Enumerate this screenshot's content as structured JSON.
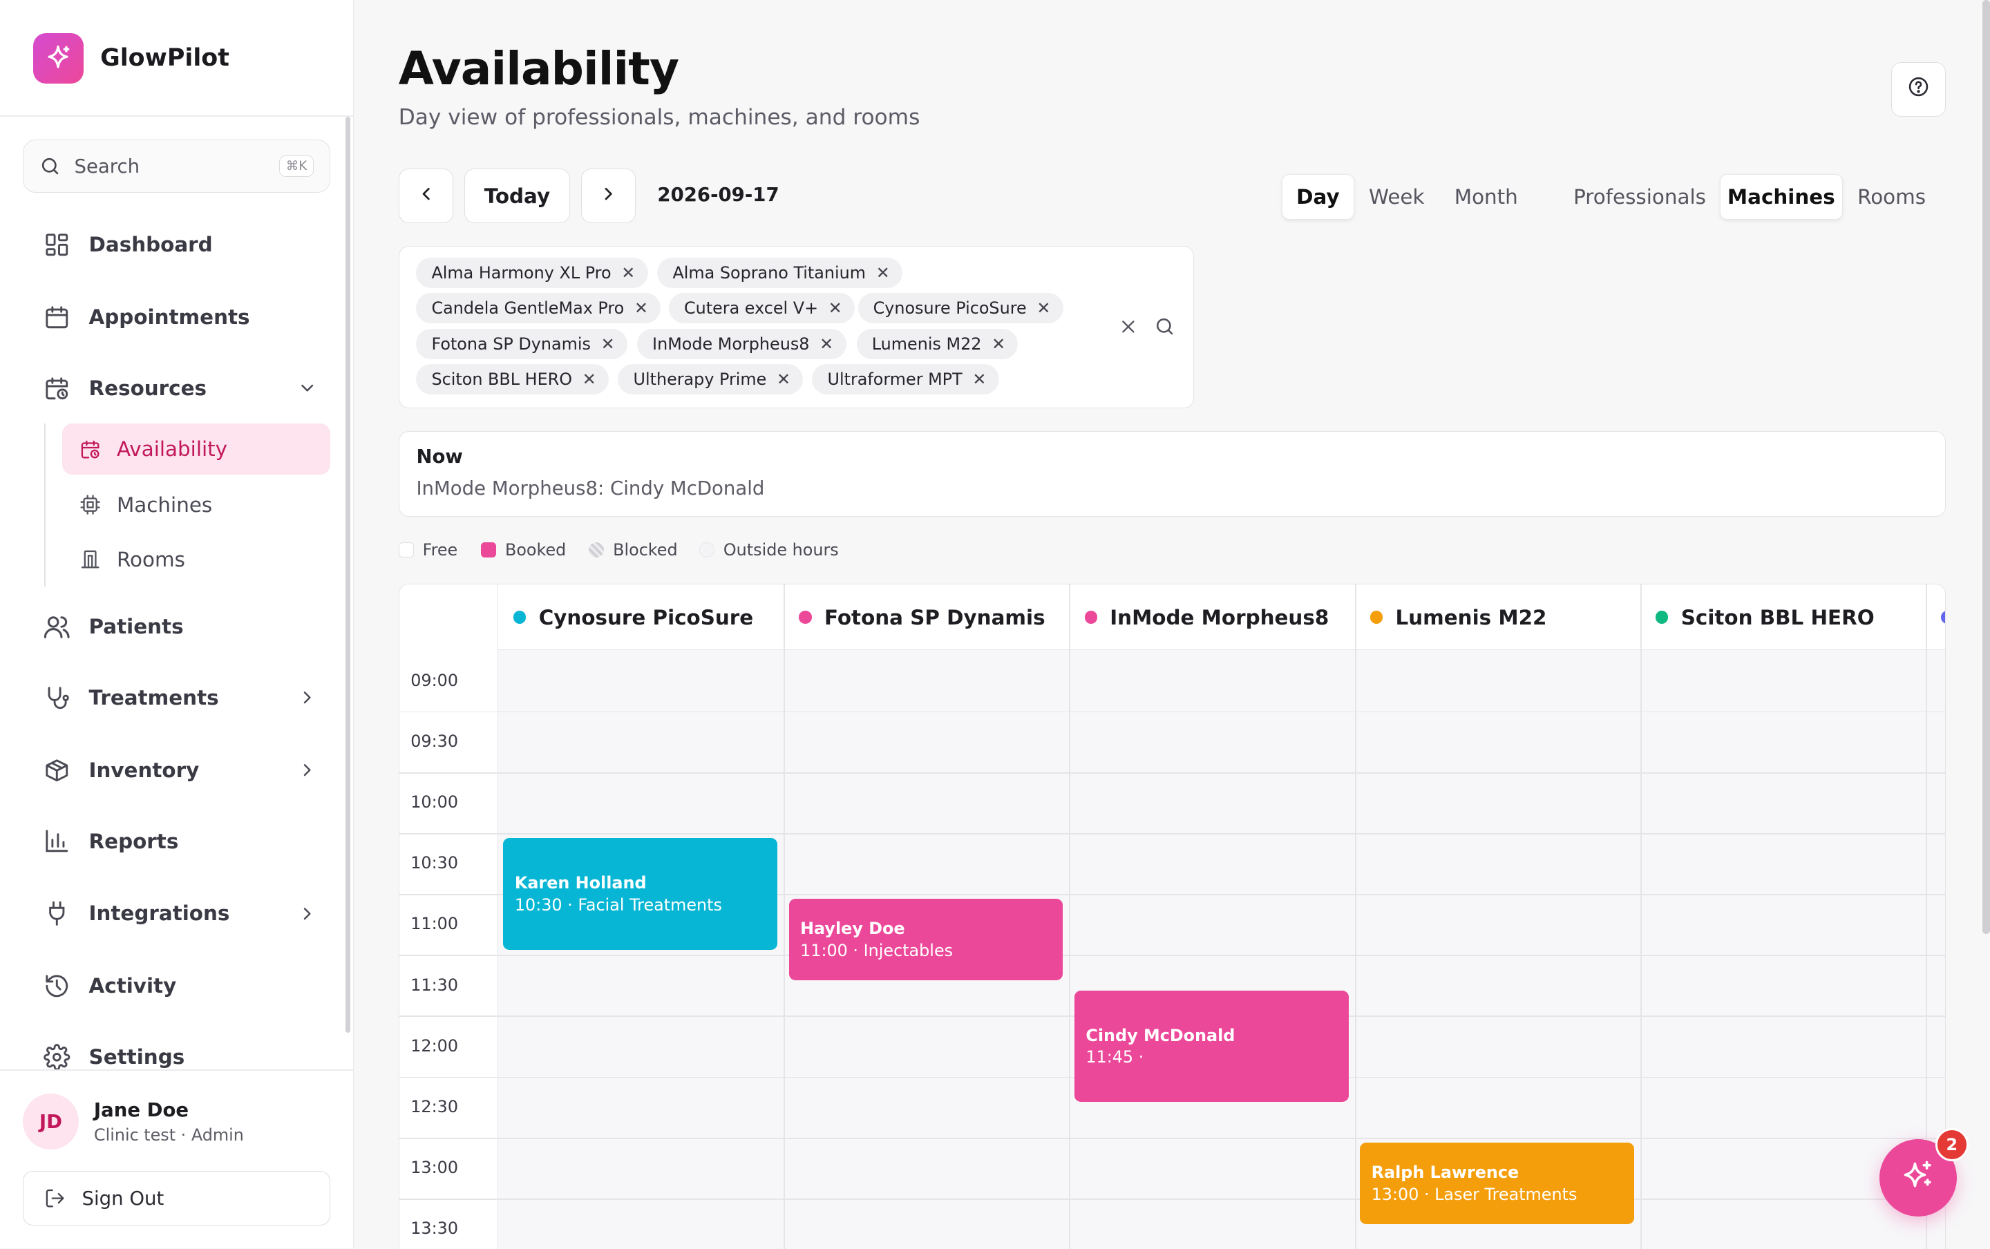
{
  "app": {
    "name": "GlowPilot"
  },
  "search": {
    "label": "Search",
    "shortcut": "⌘K"
  },
  "nav": {
    "dashboard": "Dashboard",
    "appointments": "Appointments",
    "resources": "Resources",
    "availability": "Availability",
    "machines": "Machines",
    "rooms": "Rooms",
    "patients": "Patients",
    "treatments": "Treatments",
    "inventory": "Inventory",
    "reports": "Reports",
    "integrations": "Integrations",
    "activity": "Activity",
    "settings": "Settings"
  },
  "user": {
    "initials": "JD",
    "name": "Jane Doe",
    "role": "Clinic test · Admin",
    "signout": "Sign Out"
  },
  "page": {
    "title": "Availability",
    "subtitle": "Day view of professionals, machines, and rooms"
  },
  "toolbar": {
    "today": "Today",
    "date": "2026-09-17",
    "view_day": "Day",
    "view_week": "Week",
    "view_month": "Month",
    "res_professionals": "Professionals",
    "res_machines": "Machines",
    "res_rooms": "Rooms",
    "active_view": "Day",
    "active_resource": "Machines"
  },
  "filters": {
    "chips": [
      "Alma Harmony XL Pro",
      "Alma Soprano Titanium",
      "Candela GentleMax Pro",
      "Cutera excel V+",
      "Cynosure PicoSure",
      "Fotona SP Dynamis",
      "InMode Morpheus8",
      "Lumenis M22",
      "Sciton BBL HERO",
      "Ultherapy Prime",
      "Ultraformer MPT"
    ],
    "remove_glyph": "✕"
  },
  "now": {
    "label": "Now",
    "value": "InMode Morpheus8: Cindy McDonald"
  },
  "legend": {
    "free": "Free",
    "booked": "Booked",
    "blocked": "Blocked",
    "outside": "Outside hours"
  },
  "calendar": {
    "columns": [
      {
        "name": "Cynosure PicoSure",
        "color": "#06b6d4"
      },
      {
        "name": "Fotona SP Dynamis",
        "color": "#ec4899"
      },
      {
        "name": "InMode Morpheus8",
        "color": "#ec4899"
      },
      {
        "name": "Lumenis M22",
        "color": "#f59e0b"
      },
      {
        "name": "Sciton BBL HERO",
        "color": "#10b981"
      }
    ],
    "times": [
      "09:00",
      "09:30",
      "10:00",
      "10:30",
      "11:00",
      "11:30",
      "12:00",
      "12:30",
      "13:00",
      "13:30"
    ],
    "events": [
      {
        "col": 0,
        "name": "Karen Holland",
        "detail": "10:30 · Facial Treatments",
        "start": "10:30",
        "end": "11:30",
        "color": "#06b6d4"
      },
      {
        "col": 1,
        "name": "Hayley Doe",
        "detail": "11:00 · Injectables",
        "start": "11:00",
        "end": "11:45",
        "color": "#ec4899"
      },
      {
        "col": 2,
        "name": "Cindy McDonald",
        "detail": "11:45 ·",
        "start": "11:45",
        "end": "12:45",
        "color": "#ec4899"
      },
      {
        "col": 3,
        "name": "Ralph Lawrence",
        "detail": "13:00 · Laser Treatments",
        "start": "13:00",
        "end": "13:45",
        "color": "#f59e0b"
      }
    ]
  },
  "assistant": {
    "badge": "2"
  }
}
